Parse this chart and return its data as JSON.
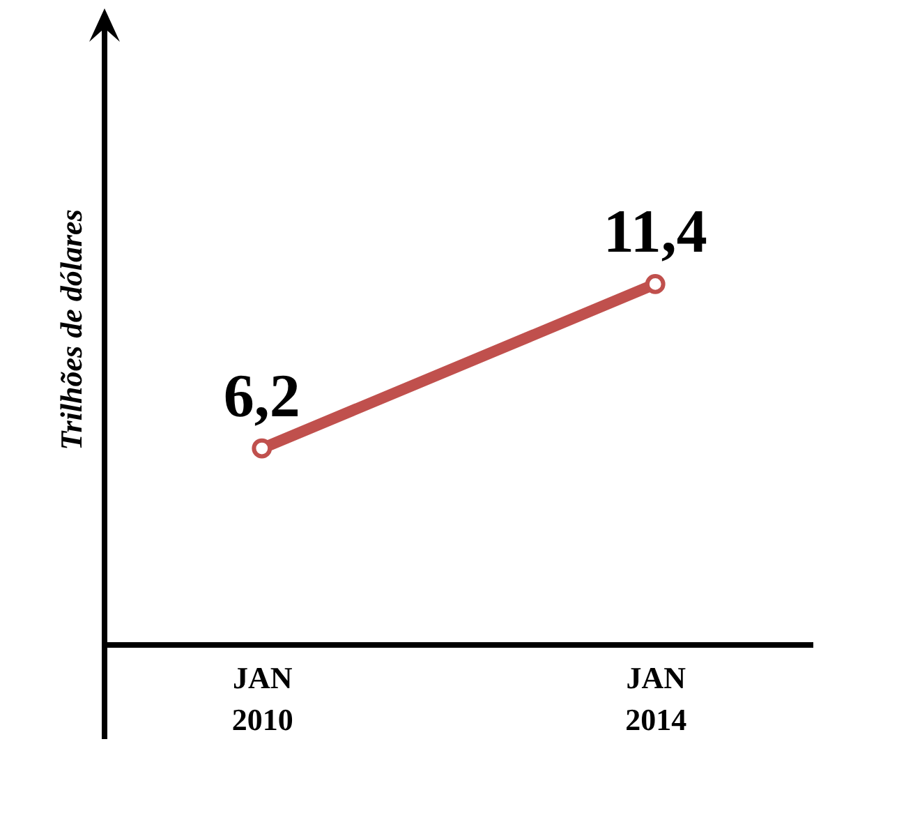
{
  "chart_data": {
    "type": "line",
    "ylabel": "Trilhões de dólares",
    "categories": [
      "JAN 2010",
      "JAN 2014"
    ],
    "series": [
      {
        "color": "#c0504d",
        "values": [
          6.2,
          11.4
        ],
        "value_labels": [
          "6,2",
          "11,4"
        ]
      }
    ],
    "marker": "circle",
    "tick_labels": "x",
    "grid": false
  }
}
